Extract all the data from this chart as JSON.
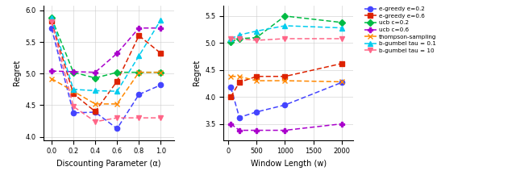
{
  "left_plot": {
    "xlabel": "Discounting Parameter (α)",
    "ylabel": "Regret",
    "xlim": [
      -0.07,
      1.12
    ],
    "ylim": [
      3.95,
      6.08
    ],
    "xticks": [
      0,
      0.2,
      0.4,
      0.6,
      0.8,
      1.0
    ],
    "yticks": [
      4.0,
      4.5,
      5.0,
      5.5,
      6.0
    ],
    "series": [
      {
        "label": "e-greedy e=0.2",
        "color": "#4444ff",
        "marker": "o",
        "x": [
          0,
          0.2,
          0.4,
          0.6,
          0.8,
          1.0
        ],
        "y": [
          5.72,
          4.38,
          4.39,
          4.13,
          4.67,
          4.82
        ]
      },
      {
        "label": "e-greedy e=0.6",
        "color": "#dd2200",
        "marker": "s",
        "x": [
          0,
          0.2,
          0.4,
          0.6,
          0.8,
          1.0
        ],
        "y": [
          5.83,
          4.68,
          4.4,
          4.88,
          5.6,
          5.32
        ]
      },
      {
        "label": "ucb c=0.2",
        "color": "#00bb44",
        "marker": "D",
        "x": [
          0,
          0.2,
          0.4,
          0.6,
          0.8,
          1.0
        ],
        "y": [
          5.88,
          5.02,
          4.93,
          5.02,
          5.02,
          5.02
        ]
      },
      {
        "label": "ucb c=0.6",
        "color": "#aa00cc",
        "marker": "P",
        "x": [
          0,
          0.2,
          0.4,
          0.6,
          0.8,
          1.0
        ],
        "y": [
          5.04,
          5.03,
          5.02,
          5.32,
          5.72,
          5.72
        ]
      },
      {
        "label": "thompson-sampling",
        "color": "#ff8800",
        "marker": "x",
        "x": [
          0,
          0.2,
          0.4,
          0.6,
          0.8,
          1.0
        ],
        "y": [
          4.92,
          4.72,
          4.52,
          4.52,
          5.02,
          5.02
        ]
      },
      {
        "label": "b-gumbel tau = 0.1",
        "color": "#00ccee",
        "marker": "^",
        "x": [
          0,
          0.2,
          0.4,
          0.6,
          0.8,
          1.0
        ],
        "y": [
          5.88,
          4.75,
          4.73,
          4.72,
          5.28,
          5.85
        ]
      },
      {
        "label": "b-gumbel tau = 10",
        "color": "#ff6688",
        "marker": "v",
        "x": [
          0,
          0.2,
          0.4,
          0.6,
          0.8,
          1.0
        ],
        "y": [
          5.82,
          4.48,
          4.24,
          4.3,
          4.3,
          4.3
        ]
      }
    ]
  },
  "right_plot": {
    "xlabel": "Window Length (w)",
    "ylabel": "Regret",
    "xlim": [
      -80,
      2200
    ],
    "ylim": [
      3.2,
      5.7
    ],
    "xticks": [
      0,
      500,
      1000,
      1500,
      2000
    ],
    "yticks": [
      3.5,
      4.0,
      4.5,
      5.0,
      5.5
    ],
    "series": [
      {
        "label": "e-greedy e=0.2",
        "color": "#4444ff",
        "marker": "o",
        "x": [
          50,
          200,
          500,
          1000,
          2000
        ],
        "y": [
          4.18,
          3.62,
          3.72,
          3.85,
          4.27
        ]
      },
      {
        "label": "e-greedy e=0.6",
        "color": "#dd2200",
        "marker": "s",
        "x": [
          50,
          200,
          500,
          1000,
          2000
        ],
        "y": [
          4.0,
          4.27,
          4.38,
          4.38,
          4.62
        ]
      },
      {
        "label": "ucb c=0.2",
        "color": "#00bb44",
        "marker": "D",
        "x": [
          50,
          200,
          500,
          1000,
          2000
        ],
        "y": [
          5.02,
          5.08,
          5.1,
          5.5,
          5.38
        ]
      },
      {
        "label": "ucb c=0.6",
        "color": "#aa00cc",
        "marker": "P",
        "x": [
          50,
          200,
          500,
          1000,
          2000
        ],
        "y": [
          3.5,
          3.38,
          3.38,
          3.38,
          3.5
        ]
      },
      {
        "label": "thompson-sampling",
        "color": "#ff8800",
        "marker": "x",
        "x": [
          50,
          200,
          500,
          1000,
          2000
        ],
        "y": [
          4.38,
          4.38,
          4.3,
          4.3,
          4.28
        ]
      },
      {
        "label": "b-gumbel tau = 0.1",
        "color": "#00ccee",
        "marker": "^",
        "x": [
          50,
          200,
          500,
          1000,
          2000
        ],
        "y": [
          5.08,
          5.15,
          5.22,
          5.32,
          5.28
        ]
      },
      {
        "label": "b-gumbel tau = 10",
        "color": "#ff6688",
        "marker": "v",
        "x": [
          50,
          200,
          500,
          1000,
          2000
        ],
        "y": [
          5.08,
          5.08,
          5.05,
          5.08,
          5.08
        ]
      }
    ]
  },
  "legend": {
    "labels": [
      "e-greedy e=0.2",
      "e-greedy e=0.6",
      "ucb c=0.2",
      "ucb c=0.6",
      "thompson-sampling",
      "b-gumbel tau = 0.1",
      "b-gumbel tau = 10"
    ],
    "colors": [
      "#4444ff",
      "#dd2200",
      "#00bb44",
      "#aa00cc",
      "#ff8800",
      "#00ccee",
      "#ff6688"
    ],
    "markers": [
      "o",
      "s",
      "D",
      "P",
      "x",
      "^",
      "v"
    ]
  }
}
